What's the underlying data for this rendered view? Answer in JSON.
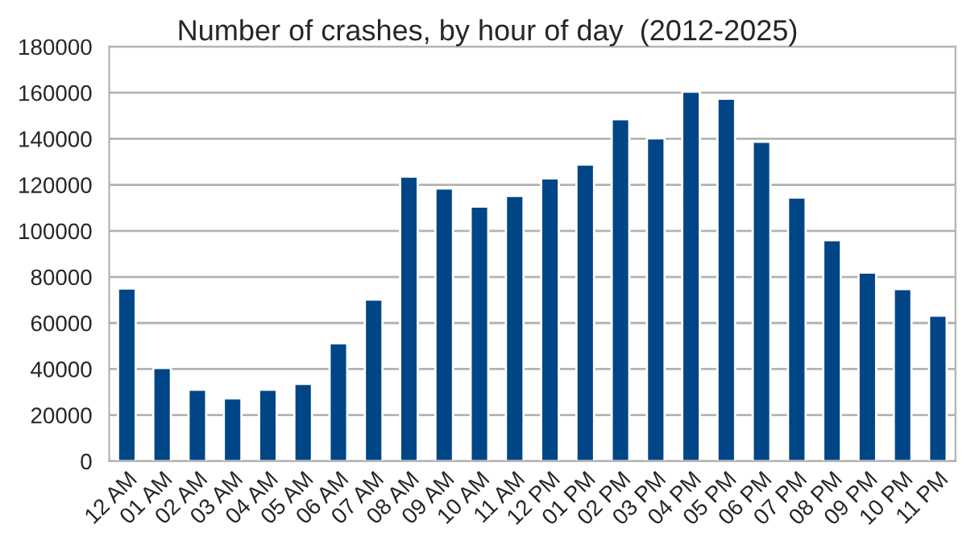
{
  "chart_data": {
    "type": "bar",
    "title": "Number of crashes, by hour of day  (2012-2025)",
    "categories": [
      "12 AM",
      "01 AM",
      "02 AM",
      "03 AM",
      "04 AM",
      "05 AM",
      "06 AM",
      "07 AM",
      "08 AM",
      "09 AM",
      "10 AM",
      "11 AM",
      "12 PM",
      "01 PM",
      "02 PM",
      "03 PM",
      "04 PM",
      "05 PM",
      "06 PM",
      "07 PM",
      "08 PM",
      "09 PM",
      "10 PM",
      "11 PM"
    ],
    "values": [
      75000,
      40500,
      31000,
      27300,
      31000,
      33600,
      51200,
      70200,
      123600,
      118400,
      110600,
      115200,
      122800,
      128800,
      148500,
      140200,
      160500,
      157400,
      138700,
      114500,
      96000,
      81900,
      74700,
      63200
    ],
    "color": "#004586",
    "ylim": [
      0,
      180000
    ],
    "yticks": [
      0,
      20000,
      40000,
      60000,
      80000,
      100000,
      120000,
      140000,
      160000,
      180000
    ],
    "grid": "y",
    "legend": false
  }
}
